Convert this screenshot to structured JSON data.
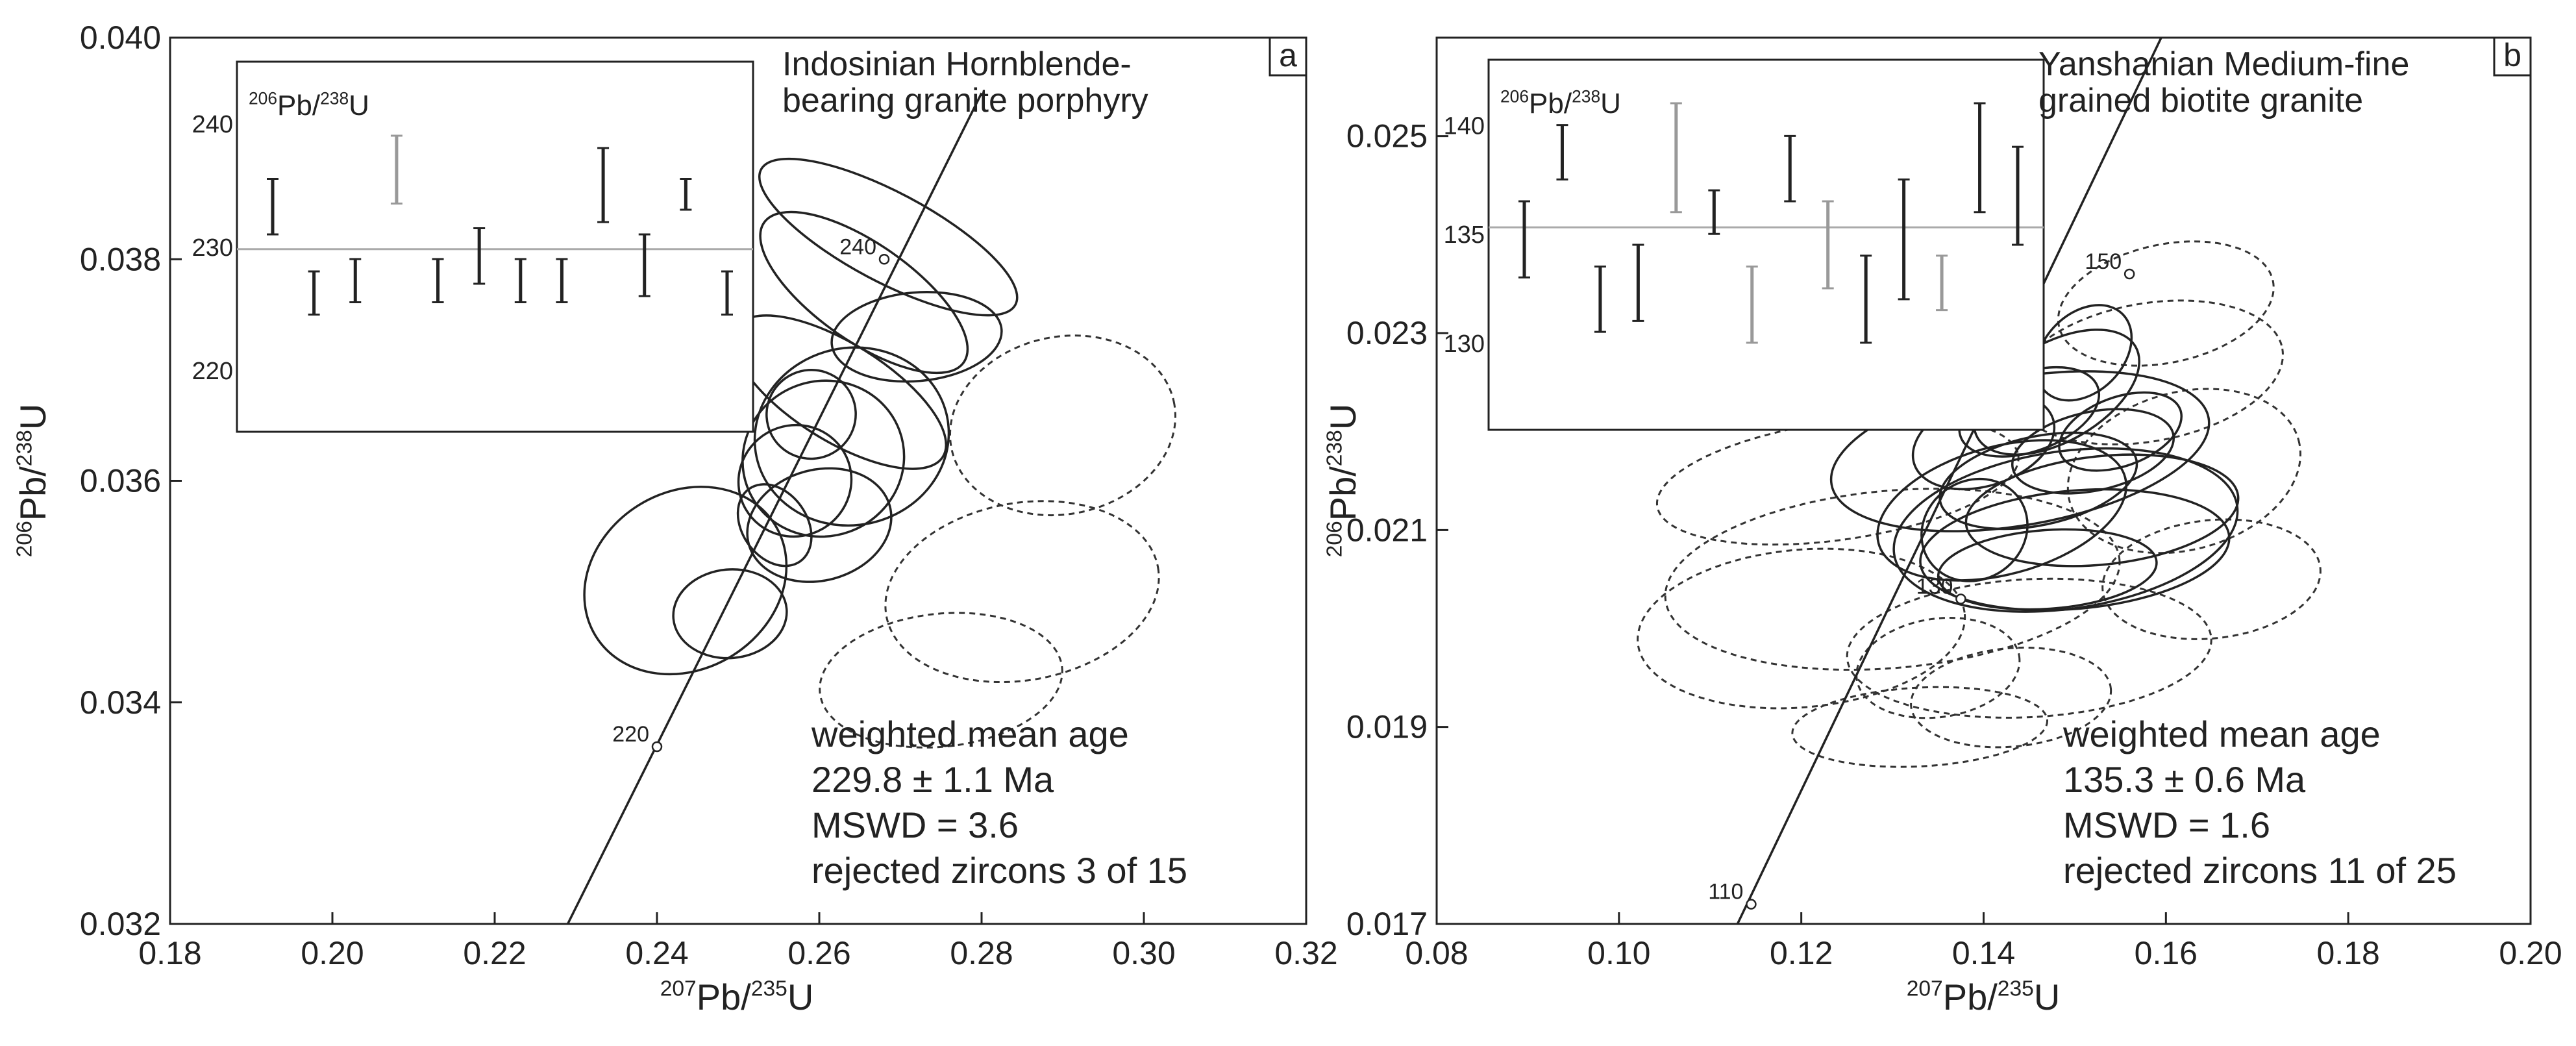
{
  "chart_data": [
    {
      "type": "scatter",
      "subtype": "concordia",
      "panel_label": "a",
      "xlabel": "207Pb/235U",
      "ylabel": "206Pb/238U",
      "xlim": [
        0.18,
        0.32
      ],
      "ylim": [
        0.032,
        0.04
      ],
      "x_ticks": [
        "0.18",
        "0.20",
        "0.22",
        "0.24",
        "0.26",
        "0.28",
        "0.30",
        "0.32"
      ],
      "y_ticks": [
        "0.032",
        "0.034",
        "0.036",
        "0.038",
        "0.040"
      ],
      "grid": false,
      "sample_label": [
        "Indosinian Hornblende-",
        "bearing granite porphyry"
      ],
      "stats": {
        "heading": "weighted mean age",
        "age": "229.8 ± 1.1 Ma",
        "mswd": "MSWD = 3.6",
        "rejected": "rejected zircons 3 of 15"
      },
      "concordia_line": [
        [
          0.229,
          0.032
        ],
        [
          0.28,
          0.0395
        ]
      ],
      "age_marks": [
        {
          "label": "220",
          "x": 0.24,
          "y": 0.0336
        },
        {
          "label": "240",
          "x": 0.268,
          "y": 0.038
        }
      ],
      "ellipses_accepted": [
        {
          "x": 0.2685,
          "y": 0.0382,
          "rx": 0.0055,
          "ry": 0.0013,
          "angle": 62
        },
        {
          "x": 0.2655,
          "y": 0.0377,
          "rx": 0.006,
          "ry": 0.0011,
          "angle": 55
        },
        {
          "x": 0.272,
          "y": 0.0373,
          "rx": 0.0105,
          "ry": 0.0004,
          "angle": 5
        },
        {
          "x": 0.2625,
          "y": 0.0368,
          "rx": 0.006,
          "ry": 0.0011,
          "angle": 58
        },
        {
          "x": 0.2605,
          "y": 0.0362,
          "rx": 0.01,
          "ry": 0.0007,
          "angle": 20
        },
        {
          "x": 0.264,
          "y": 0.0364,
          "rx": 0.012,
          "ry": 0.0008,
          "angle": 12
        },
        {
          "x": 0.257,
          "y": 0.036,
          "rx": 0.007,
          "ry": 0.0005,
          "angle": 30
        },
        {
          "x": 0.26,
          "y": 0.0356,
          "rx": 0.009,
          "ry": 0.0005,
          "angle": 15
        },
        {
          "x": 0.2435,
          "y": 0.0351,
          "rx": 0.013,
          "ry": 0.0008,
          "angle": 32
        },
        {
          "x": 0.249,
          "y": 0.0348,
          "rx": 0.007,
          "ry": 0.0004,
          "angle": 5
        },
        {
          "x": 0.2545,
          "y": 0.0356,
          "rx": 0.004,
          "ry": 0.0004,
          "angle": 35
        },
        {
          "x": 0.259,
          "y": 0.0366,
          "rx": 0.0055,
          "ry": 0.0004,
          "angle": 25
        }
      ],
      "ellipses_rejected": [
        {
          "x": 0.29,
          "y": 0.0365,
          "rx": 0.014,
          "ry": 0.0008,
          "angle": 12
        },
        {
          "x": 0.285,
          "y": 0.035,
          "rx": 0.017,
          "ry": 0.0008,
          "angle": 10
        },
        {
          "x": 0.275,
          "y": 0.0342,
          "rx": 0.015,
          "ry": 0.0006,
          "angle": 6
        }
      ],
      "inset": {
        "label": "206Pb/238U",
        "ylim": [
          215,
          245
        ],
        "y_ticks": [
          220,
          230,
          240
        ],
        "mean": 229.8,
        "bars": [
          {
            "lo": 231.0,
            "hi": 235.5,
            "rejected": false
          },
          {
            "lo": 224.5,
            "hi": 228.0,
            "rejected": false
          },
          {
            "lo": 225.5,
            "hi": 229.0,
            "rejected": false
          },
          {
            "lo": 233.5,
            "hi": 239.0,
            "rejected": true
          },
          {
            "lo": 225.5,
            "hi": 229.0,
            "rejected": false
          },
          {
            "lo": 227.0,
            "hi": 231.5,
            "rejected": false
          },
          {
            "lo": 225.5,
            "hi": 229.0,
            "rejected": false
          },
          {
            "lo": 225.5,
            "hi": 229.0,
            "rejected": false
          },
          {
            "lo": 232.0,
            "hi": 238.0,
            "rejected": false
          },
          {
            "lo": 226.0,
            "hi": 231.0,
            "rejected": false
          },
          {
            "lo": 233.0,
            "hi": 235.5,
            "rejected": false
          },
          {
            "lo": 224.5,
            "hi": 228.0,
            "rejected": false
          }
        ]
      }
    },
    {
      "type": "scatter",
      "subtype": "concordia",
      "panel_label": "b",
      "xlabel": "207Pb/235U",
      "ylabel": "206Pb/238U",
      "xlim": [
        0.08,
        0.2
      ],
      "ylim": [
        0.017,
        0.026
      ],
      "x_ticks": [
        "0.08",
        "0.10",
        "0.12",
        "0.14",
        "0.16",
        "0.18",
        "0.20"
      ],
      "y_ticks": [
        "0.017",
        "0.019",
        "0.021",
        "0.023",
        "0.025"
      ],
      "grid": false,
      "sample_label": [
        "Yanshanian Medium-fine",
        "grained biotite granite"
      ],
      "stats": {
        "heading": "weighted mean age",
        "age": "135.3 ± 0.6 Ma",
        "mswd": "MSWD = 1.6",
        "rejected": "rejected zircons 11 of 25"
      },
      "concordia_line": [
        [
          0.113,
          0.017
        ],
        [
          0.16,
          0.0261
        ]
      ],
      "age_marks": [
        {
          "label": "110",
          "x": 0.1145,
          "y": 0.0172
        },
        {
          "label": "130",
          "x": 0.1375,
          "y": 0.0203
        },
        {
          "label": "150",
          "x": 0.156,
          "y": 0.0236
        }
      ],
      "ellipses_accepted": [
        {
          "x": 0.144,
          "y": 0.0218,
          "rx": 0.021,
          "ry": 0.00075,
          "angle": 10
        },
        {
          "x": 0.149,
          "y": 0.021,
          "rx": 0.019,
          "ry": 0.0008,
          "angle": 8
        },
        {
          "x": 0.15,
          "y": 0.0208,
          "rx": 0.017,
          "ry": 0.0006,
          "angle": 5
        },
        {
          "x": 0.142,
          "y": 0.0212,
          "rx": 0.014,
          "ry": 0.00065,
          "angle": 15
        },
        {
          "x": 0.146,
          "y": 0.0215,
          "rx": 0.011,
          "ry": 0.00045,
          "angle": 12
        },
        {
          "x": 0.148,
          "y": 0.0224,
          "rx": 0.01,
          "ry": 0.0005,
          "angle": 30
        },
        {
          "x": 0.145,
          "y": 0.0222,
          "rx": 0.008,
          "ry": 0.0004,
          "angle": 20
        },
        {
          "x": 0.151,
          "y": 0.0228,
          "rx": 0.006,
          "ry": 0.0004,
          "angle": 45
        },
        {
          "x": 0.14,
          "y": 0.0219,
          "rx": 0.008,
          "ry": 0.00045,
          "angle": 18
        },
        {
          "x": 0.153,
          "y": 0.0212,
          "rx": 0.015,
          "ry": 0.00055,
          "angle": 6
        },
        {
          "x": 0.147,
          "y": 0.0206,
          "rx": 0.012,
          "ry": 0.0004,
          "angle": 4
        },
        {
          "x": 0.152,
          "y": 0.0218,
          "rx": 0.009,
          "ry": 0.0004,
          "angle": 12
        },
        {
          "x": 0.139,
          "y": 0.021,
          "rx": 0.006,
          "ry": 0.0005,
          "angle": 35
        },
        {
          "x": 0.155,
          "y": 0.022,
          "rx": 0.007,
          "ry": 0.00035,
          "angle": 20
        }
      ],
      "ellipses_rejected": [
        {
          "x": 0.13,
          "y": 0.0205,
          "rx": 0.025,
          "ry": 0.0009,
          "angle": 5
        },
        {
          "x": 0.12,
          "y": 0.02,
          "rx": 0.018,
          "ry": 0.0008,
          "angle": 5
        },
        {
          "x": 0.145,
          "y": 0.0198,
          "rx": 0.02,
          "ry": 0.0007,
          "angle": 3
        },
        {
          "x": 0.158,
          "y": 0.0226,
          "rx": 0.015,
          "ry": 0.0007,
          "angle": 10
        },
        {
          "x": 0.162,
          "y": 0.0216,
          "rx": 0.013,
          "ry": 0.0008,
          "angle": 15
        },
        {
          "x": 0.16,
          "y": 0.0233,
          "rx": 0.012,
          "ry": 0.0006,
          "angle": 12
        },
        {
          "x": 0.135,
          "y": 0.0196,
          "rx": 0.009,
          "ry": 0.0005,
          "angle": 8
        },
        {
          "x": 0.133,
          "y": 0.019,
          "rx": 0.014,
          "ry": 0.0004,
          "angle": 3
        },
        {
          "x": 0.124,
          "y": 0.0215,
          "rx": 0.02,
          "ry": 0.0006,
          "angle": 8
        },
        {
          "x": 0.143,
          "y": 0.0193,
          "rx": 0.011,
          "ry": 0.0005,
          "angle": 5
        },
        {
          "x": 0.165,
          "y": 0.0205,
          "rx": 0.012,
          "ry": 0.0006,
          "angle": 6
        }
      ],
      "inset": {
        "label": "206Pb/238U",
        "ylim": [
          126,
          143
        ],
        "y_ticks": [
          130,
          135,
          140
        ],
        "mean": 135.3,
        "bars": [
          {
            "lo": 133.0,
            "hi": 136.5,
            "rejected": false
          },
          {
            "lo": 137.5,
            "hi": 140.0,
            "rejected": false
          },
          {
            "lo": 130.5,
            "hi": 133.5,
            "rejected": false
          },
          {
            "lo": 131.0,
            "hi": 134.5,
            "rejected": false
          },
          {
            "lo": 136.0,
            "hi": 141.0,
            "rejected": true
          },
          {
            "lo": 135.0,
            "hi": 137.0,
            "rejected": false
          },
          {
            "lo": 130.0,
            "hi": 133.5,
            "rejected": true
          },
          {
            "lo": 136.5,
            "hi": 139.5,
            "rejected": false
          },
          {
            "lo": 132.5,
            "hi": 136.5,
            "rejected": true
          },
          {
            "lo": 130.0,
            "hi": 134.0,
            "rejected": false
          },
          {
            "lo": 132.0,
            "hi": 137.5,
            "rejected": false
          },
          {
            "lo": 131.5,
            "hi": 134.0,
            "rejected": true
          },
          {
            "lo": 136.0,
            "hi": 141.0,
            "rejected": false
          },
          {
            "lo": 134.5,
            "hi": 139.0,
            "rejected": false
          }
        ]
      }
    }
  ]
}
